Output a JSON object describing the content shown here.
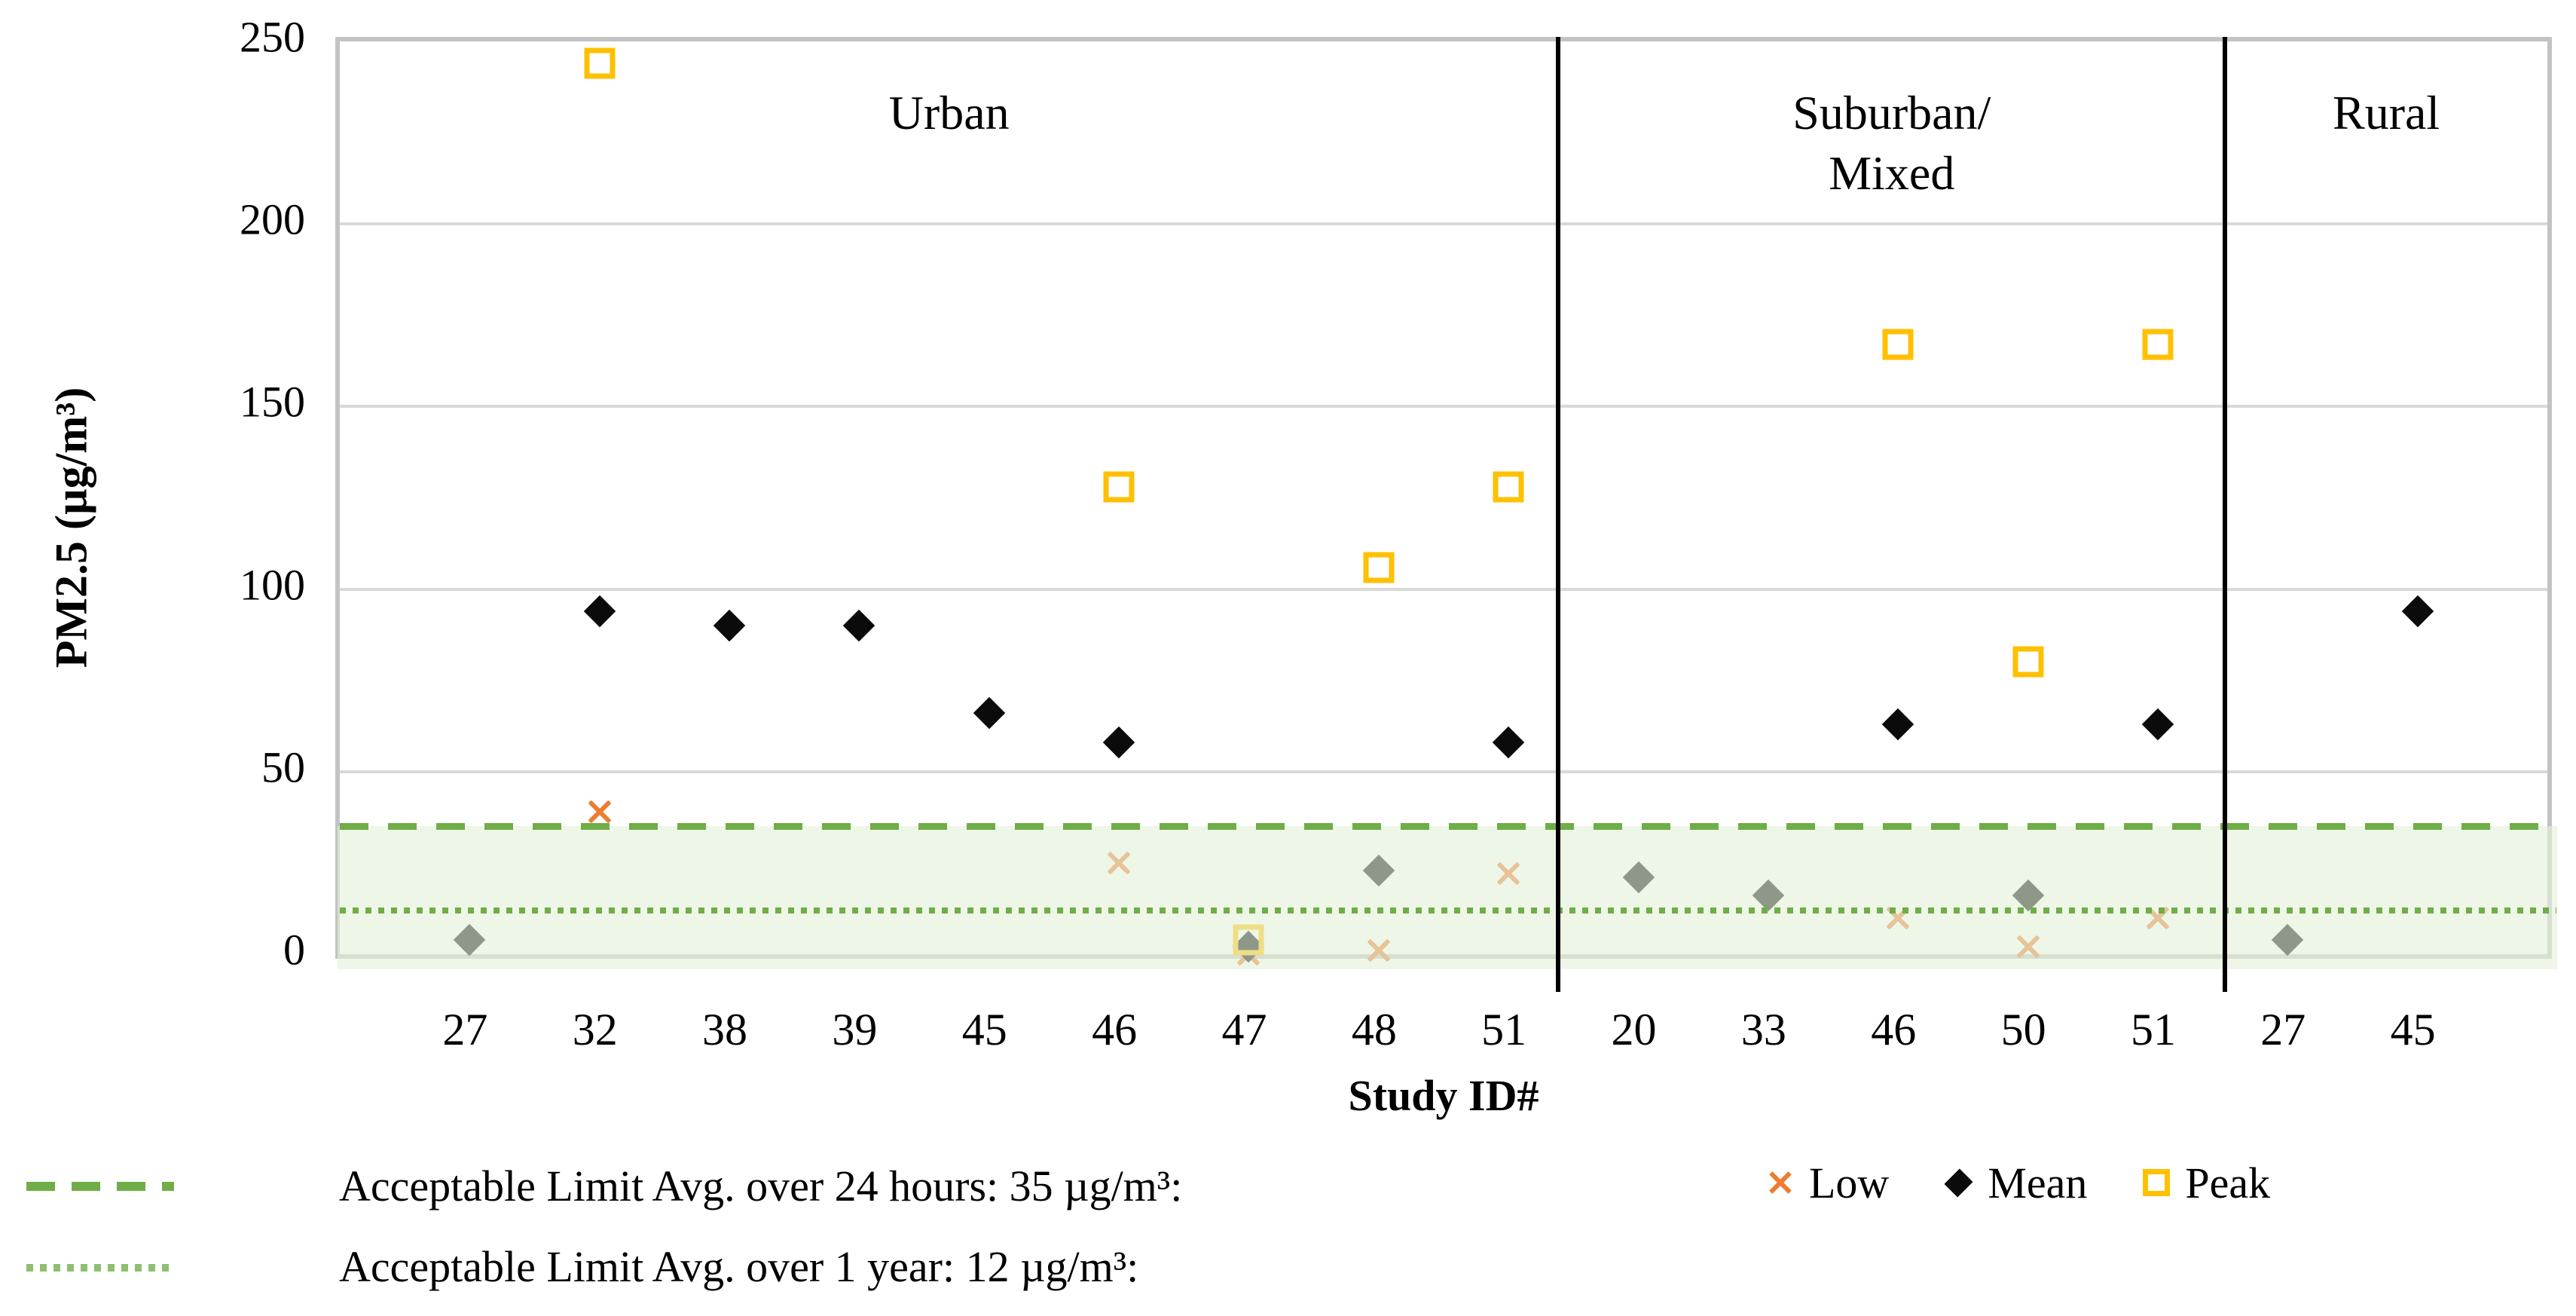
{
  "chart_data": {
    "type": "scatter",
    "title": "",
    "xlabel": "Study ID#",
    "ylabel": "PM2.5 (µg/m³)",
    "ylim": [
      0,
      250
    ],
    "yticks": [
      0,
      50,
      100,
      150,
      200,
      250
    ],
    "slots": 17,
    "grid": true,
    "separators_frac": [
      0.552,
      0.854
    ],
    "groups": [
      {
        "label_lines": [
          "Urban"
        ],
        "center_frac": 0.276,
        "points": [
          {
            "id": "27",
            "mean": 4
          },
          {
            "id": "32",
            "low": 39,
            "mean": 94,
            "peak": 244
          },
          {
            "id": "38",
            "mean": 90
          },
          {
            "id": "39",
            "mean": 90
          },
          {
            "id": "45",
            "mean": 66
          },
          {
            "id": "46",
            "low": 25,
            "mean": 58,
            "peak": 128
          },
          {
            "id": "47",
            "low": 0,
            "mean": 2,
            "peak": 4
          },
          {
            "id": "48",
            "low": 1,
            "mean": 23,
            "peak": 106
          },
          {
            "id": "51",
            "low": 22,
            "mean": 58,
            "peak": 128
          }
        ]
      },
      {
        "label_lines": [
          "Suburban/",
          "Mixed"
        ],
        "center_frac": 0.703,
        "points": [
          {
            "id": "20",
            "mean": 21
          },
          {
            "id": "33",
            "mean": 16
          },
          {
            "id": "46",
            "low": 10,
            "mean": 63,
            "peak": 167
          },
          {
            "id": "50",
            "low": 2,
            "mean": 16,
            "peak": 80
          },
          {
            "id": "51",
            "low": 10,
            "mean": 63,
            "peak": 167
          }
        ]
      },
      {
        "label_lines": [
          "Rural"
        ],
        "center_frac": 0.927,
        "points": [
          {
            "id": "27",
            "mean": 4
          },
          {
            "id": "45",
            "mean": 94
          }
        ]
      }
    ],
    "series": [
      {
        "name": "Low",
        "marker": "x",
        "color": "#ED7D31"
      },
      {
        "name": "Mean",
        "marker": "diamond",
        "color": "#000000"
      },
      {
        "name": "Peak",
        "marker": "square",
        "color": "#FFC000"
      }
    ],
    "limits": [
      {
        "label": "Acceptable Limit Avg. over 24 hours: 35 µg/m³:",
        "value": 35,
        "style": "dashed",
        "color": "#70AD47"
      },
      {
        "label": "Acceptable Limit Avg. over 1 year: 12 µg/m³:",
        "value": 12,
        "style": "dotted",
        "color": "#70AD47"
      }
    ],
    "band": {
      "from": 0,
      "to": 35,
      "color": "rgba(227,240,217,0.61)"
    },
    "colors": {
      "gridline": "#d9d9d9",
      "plot_border": "#c3c3c3",
      "separator": "#000000",
      "limit_green": "#70AD47"
    }
  }
}
